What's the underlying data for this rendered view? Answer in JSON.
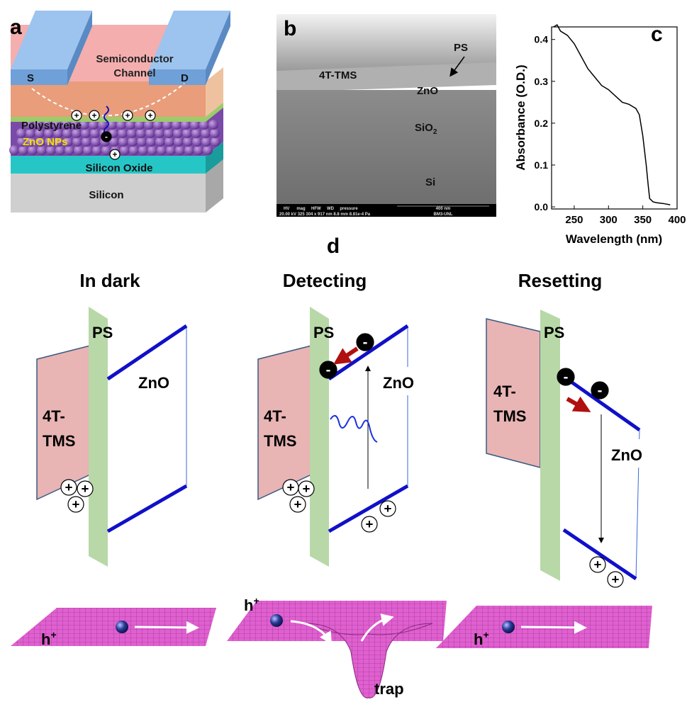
{
  "panel_a": {
    "label": "a",
    "channel": [
      "Semiconductor",
      "Channel"
    ],
    "source": "S",
    "drain": "D",
    "polystyrene": "Polystyrene",
    "zno": "ZnO NPs",
    "oxide": "Silicon Oxide",
    "substrate": "Silicon"
  },
  "panel_b": {
    "label": "b",
    "ps": "PS",
    "semiconductor": "4T-TMS",
    "zno": "ZnO",
    "sio2": "SiO",
    "sio2_sub": "2",
    "si": "Si",
    "info": [
      "HV      mag     HFW     WD     pressure",
      "400 nm",
      "20.00 kV 325 304 x 917 nm 8.8 mm 8.81e-4 Pa",
      "BM3-UNL"
    ]
  },
  "chart_data": {
    "type": "line",
    "label": "c",
    "x_label": "Wavelength (nm)",
    "y_label": "Absorbance (O.D.)",
    "x": [
      220,
      225,
      230,
      240,
      250,
      260,
      270,
      280,
      290,
      300,
      310,
      320,
      330,
      335,
      340,
      345,
      350,
      355,
      358,
      360,
      365,
      370,
      380,
      390
    ],
    "values": [
      0.43,
      0.435,
      0.42,
      0.41,
      0.39,
      0.36,
      0.33,
      0.31,
      0.29,
      0.28,
      0.265,
      0.25,
      0.245,
      0.24,
      0.235,
      0.22,
      0.17,
      0.1,
      0.05,
      0.02,
      0.012,
      0.01,
      0.008,
      0.005
    ],
    "color": "#000000",
    "xlim": [
      217,
      400
    ],
    "xticks": [
      250,
      300,
      350,
      400
    ],
    "ylim": [
      -0.005,
      0.43
    ],
    "yticks": [
      {
        "value": 0,
        "label": "0.0"
      },
      0.1,
      0.2,
      0.3,
      0.4
    ]
  },
  "panel_d": {
    "label": "d",
    "titles": [
      "In dark",
      "Detecting",
      "Resetting"
    ],
    "ps": "PS",
    "zno": "ZnO",
    "semiconductor": [
      "4T-",
      "TMS"
    ],
    "plus": "+",
    "minus": "-",
    "hole": "h",
    "hole_sup": "+",
    "trap": "trap"
  }
}
